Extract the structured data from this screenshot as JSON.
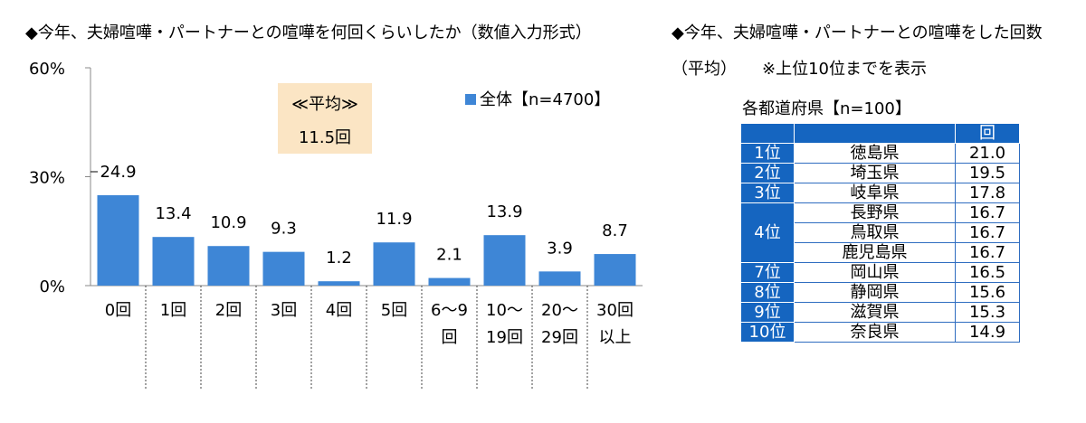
{
  "left_title": "◆今年、夫婦喧嘩・パートナーとの喧嘩を何回くらいしたか（数値入力形式）",
  "right_title_line1": "◆今年、夫婦喧嘩・パートナーとの喧嘩をした回数",
  "right_title_line2": "（平均）",
  "right_title_note": "※上位10位までを表示",
  "average_box": {
    "label": "≪平均≫",
    "value": "11.5回"
  },
  "colors": {
    "bar": "#3e86d6",
    "table_header": "#1565c0",
    "avg_box": "#fbe5c4"
  },
  "chart_data": {
    "type": "bar",
    "categories": [
      [
        "0回"
      ],
      [
        "1回"
      ],
      [
        "2回"
      ],
      [
        "3回"
      ],
      [
        "4回"
      ],
      [
        "5回"
      ],
      [
        "6～9",
        "回"
      ],
      [
        "10～",
        "19回"
      ],
      [
        "20～",
        "29回"
      ],
      [
        "30回",
        "以上"
      ]
    ],
    "series": [
      {
        "name": "全体【n=4700】",
        "values": [
          24.9,
          13.4,
          10.9,
          9.3,
          1.2,
          11.9,
          2.1,
          13.9,
          3.9,
          8.7
        ]
      }
    ],
    "data_labels": [
      "24.9",
      "13.4",
      "10.9",
      "9.3",
      "1.2",
      "11.9",
      "2.1",
      "13.9",
      "3.9",
      "8.7"
    ],
    "y_ticks": [
      "0%",
      "30%",
      "60%"
    ],
    "ylim": [
      0,
      60
    ],
    "legend_position": "top-right",
    "grid": false
  },
  "table": {
    "caption": "各都道府県【n=100】",
    "header_unit": "回",
    "rows": [
      {
        "rank": "1位",
        "pref": "徳島県",
        "value": "21.0"
      },
      {
        "rank": "2位",
        "pref": "埼玉県",
        "value": "19.5"
      },
      {
        "rank": "3位",
        "pref": "岐阜県",
        "value": "17.8"
      },
      {
        "rank": "4位",
        "pref": "長野県",
        "value": "16.7"
      },
      {
        "rank": "",
        "pref": "鳥取県",
        "value": "16.7"
      },
      {
        "rank": "",
        "pref": "鹿児島県",
        "value": "16.7"
      },
      {
        "rank": "7位",
        "pref": "岡山県",
        "value": "16.5"
      },
      {
        "rank": "8位",
        "pref": "静岡県",
        "value": "15.6"
      },
      {
        "rank": "9位",
        "pref": "滋賀県",
        "value": "15.3"
      },
      {
        "rank": "10位",
        "pref": "奈良県",
        "value": "14.9"
      }
    ]
  }
}
